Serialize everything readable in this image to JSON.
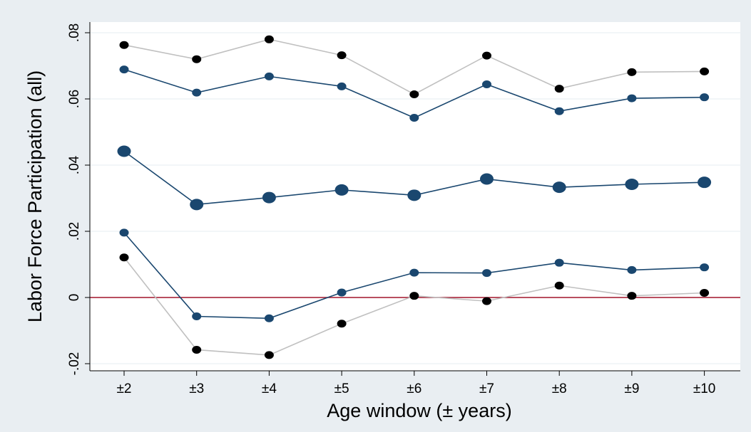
{
  "chart_data": {
    "type": "line",
    "title": "",
    "xlabel": "Age window (± years)",
    "ylabel": "Labor Force Participation (all)",
    "categories": [
      "±2",
      "±3",
      "±4",
      "±5",
      "±6",
      "±7",
      "±8",
      "±9",
      "±10"
    ],
    "ylim": [
      -0.022,
      0.082
    ],
    "yticks": [
      {
        "value": -0.02,
        "label": "-.02"
      },
      {
        "value": 0,
        "label": "0"
      },
      {
        "value": 0.02,
        "label": ".02"
      },
      {
        "value": 0.04,
        "label": ".04"
      },
      {
        "value": 0.06,
        "label": ".06"
      },
      {
        "value": 0.08,
        "label": ".08"
      }
    ],
    "grid": true,
    "reference_line": {
      "y": 0,
      "color": "#a3142b"
    },
    "series": [
      {
        "role": "outer-upper",
        "color": "#000000",
        "line_color": "#c0c0c0",
        "values": [
          0.0763,
          0.072,
          0.078,
          0.0732,
          0.0614,
          0.0731,
          0.0631,
          0.0681,
          0.0683
        ]
      },
      {
        "role": "inner-upper",
        "color": "#1a476f",
        "line_color": "#1a476f",
        "values": [
          0.0689,
          0.0619,
          0.0668,
          0.0638,
          0.0543,
          0.0644,
          0.0563,
          0.0602,
          0.0605
        ]
      },
      {
        "role": "estimate",
        "color": "#1a476f",
        "line_color": "#1a476f",
        "large": true,
        "values": [
          0.0442,
          0.0281,
          0.0302,
          0.0325,
          0.0309,
          0.0358,
          0.0333,
          0.0342,
          0.0348
        ]
      },
      {
        "role": "inner-lower",
        "color": "#1a476f",
        "line_color": "#1a476f",
        "values": [
          0.0196,
          -0.0057,
          -0.0063,
          0.0015,
          0.0075,
          0.0074,
          0.0105,
          0.0083,
          0.0091
        ]
      },
      {
        "role": "outer-lower",
        "color": "#000000",
        "line_color": "#c0c0c0",
        "values": [
          0.0121,
          -0.0158,
          -0.0174,
          -0.0079,
          0.0005,
          -0.0011,
          0.0036,
          0.0005,
          0.0014
        ]
      }
    ]
  }
}
